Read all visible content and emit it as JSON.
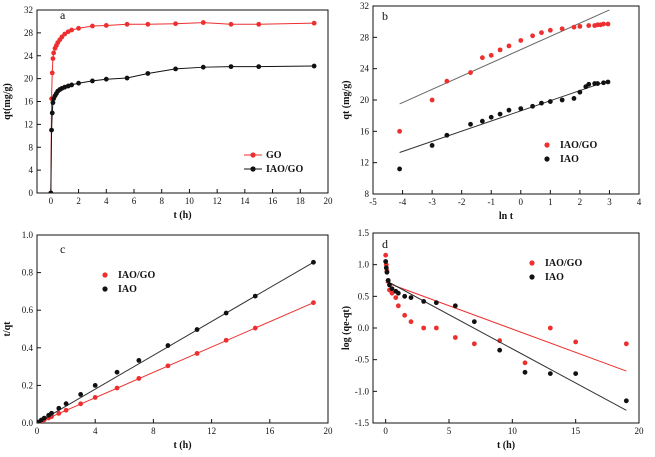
{
  "chart_data": [
    {
      "type": "scatter",
      "panel_label": "a",
      "xlabel": "t (h)",
      "ylabel": "qt(mg/g)",
      "xlim": [
        -1,
        20
      ],
      "ylim": [
        0,
        32
      ],
      "xticks": [
        0,
        2,
        4,
        6,
        8,
        10,
        12,
        14,
        16,
        18,
        20
      ],
      "yticks": [
        0,
        4,
        8,
        12,
        16,
        20,
        24,
        28,
        32
      ],
      "legend_position": "center-right",
      "series": [
        {
          "name": "GO",
          "color": "#ee2f2f",
          "marker": "circle",
          "connect": true,
          "x": [
            0,
            0.05,
            0.1,
            0.15,
            0.2,
            0.3,
            0.4,
            0.5,
            0.65,
            0.8,
            1.0,
            1.25,
            1.5,
            2.0,
            3.0,
            4.0,
            5.5,
            7.0,
            9.0,
            11.0,
            13.0,
            15.0,
            19.0
          ],
          "y": [
            0,
            16.5,
            21.0,
            23.5,
            24.5,
            25.3,
            25.8,
            26.3,
            26.8,
            27.3,
            27.8,
            28.2,
            28.5,
            28.8,
            29.2,
            29.3,
            29.5,
            29.5,
            29.6,
            29.8,
            29.5,
            29.5,
            29.7
          ]
        },
        {
          "name": "IAO/GO",
          "color": "#111111",
          "marker": "circle",
          "connect": true,
          "x": [
            0,
            0.05,
            0.1,
            0.15,
            0.2,
            0.3,
            0.4,
            0.5,
            0.65,
            0.8,
            1.0,
            1.25,
            1.5,
            2.0,
            3.0,
            4.0,
            5.5,
            7.0,
            9.0,
            11.0,
            13.0,
            15.0,
            19.0
          ],
          "y": [
            0,
            11.0,
            14.0,
            15.8,
            16.5,
            17.0,
            17.4,
            17.8,
            18.1,
            18.3,
            18.5,
            18.7,
            18.9,
            19.2,
            19.6,
            19.9,
            20.1,
            20.9,
            21.7,
            22.0,
            22.1,
            22.1,
            22.2
          ]
        }
      ]
    },
    {
      "type": "scatter",
      "panel_label": "b",
      "xlabel": "ln t",
      "ylabel": "qt (mg/g)",
      "xlim": [
        -5,
        4
      ],
      "ylim": [
        8,
        32
      ],
      "xticks": [
        -5,
        -4,
        -3,
        -2,
        -1,
        0,
        1,
        2,
        3,
        4
      ],
      "yticks": [
        8,
        12,
        16,
        20,
        24,
        28,
        32
      ],
      "legend_position": "bottom-right",
      "series": [
        {
          "name": "IAO/GO",
          "color": "#ee2f2f",
          "marker": "circle",
          "x": [
            -4.1,
            -3.0,
            -2.5,
            -1.7,
            -1.3,
            -1.0,
            -0.7,
            -0.4,
            0.0,
            0.4,
            0.7,
            1.0,
            1.4,
            1.8,
            2.0,
            2.3,
            2.5,
            2.6,
            2.7,
            2.8,
            2.95
          ],
          "y": [
            16.0,
            20.0,
            22.4,
            23.5,
            25.4,
            25.7,
            26.4,
            26.9,
            27.6,
            28.2,
            28.6,
            28.9,
            29.1,
            29.3,
            29.4,
            29.5,
            29.5,
            29.6,
            29.6,
            29.7,
            29.7
          ],
          "fit": {
            "x": [
              -4.1,
              3.0
            ],
            "y": [
              19.5,
              31.5
            ]
          }
        },
        {
          "name": "IAO",
          "color": "#111111",
          "marker": "circle",
          "x": [
            -4.1,
            -3.0,
            -2.5,
            -1.7,
            -1.3,
            -1.0,
            -0.7,
            -0.4,
            0.0,
            0.4,
            0.7,
            1.0,
            1.4,
            1.8,
            2.0,
            2.2,
            2.3,
            2.5,
            2.6,
            2.8,
            2.95
          ],
          "y": [
            11.2,
            14.2,
            15.5,
            16.9,
            17.3,
            17.8,
            18.2,
            18.7,
            18.9,
            19.2,
            19.6,
            19.8,
            20.0,
            20.2,
            21.0,
            21.7,
            22.0,
            22.1,
            22.1,
            22.2,
            22.3
          ],
          "fit": {
            "x": [
              -4.1,
              3.0
            ],
            "y": [
              13.3,
              22.5
            ]
          }
        }
      ]
    },
    {
      "type": "scatter",
      "panel_label": "c",
      "xlabel": "t (h)",
      "ylabel": "t/qt",
      "xlim": [
        0,
        20
      ],
      "ylim": [
        0.0,
        1.0
      ],
      "xticks": [
        0,
        4,
        8,
        12,
        16,
        20
      ],
      "yticks": [
        0.0,
        0.2,
        0.4,
        0.6,
        0.8,
        1.0
      ],
      "legend_position": "center",
      "series": [
        {
          "name": "IAO/GO",
          "color": "#ee2f2f",
          "marker": "circle",
          "x": [
            0.1,
            0.3,
            0.5,
            0.8,
            1.0,
            1.5,
            2.0,
            3.0,
            4.0,
            5.5,
            7.0,
            9.0,
            11.0,
            13.0,
            15.0,
            19.0
          ],
          "y": [
            0.003,
            0.01,
            0.017,
            0.027,
            0.034,
            0.051,
            0.068,
            0.102,
            0.136,
            0.186,
            0.237,
            0.304,
            0.37,
            0.44,
            0.505,
            0.64
          ],
          "fit": {
            "x": [
              0,
              19.0
            ],
            "y": [
              0,
              0.64
            ]
          }
        },
        {
          "name": "IAO",
          "color": "#111111",
          "marker": "circle",
          "x": [
            0.1,
            0.3,
            0.5,
            0.8,
            1.0,
            1.5,
            2.0,
            3.0,
            4.0,
            5.5,
            7.0,
            9.0,
            11.0,
            13.0,
            15.0,
            19.0
          ],
          "y": [
            0.005,
            0.016,
            0.026,
            0.041,
            0.052,
            0.078,
            0.103,
            0.152,
            0.2,
            0.27,
            0.333,
            0.412,
            0.497,
            0.585,
            0.675,
            0.855
          ],
          "fit": {
            "x": [
              0,
              19.0
            ],
            "y": [
              0,
              0.855
            ]
          }
        }
      ]
    },
    {
      "type": "scatter",
      "panel_label": "d",
      "xlabel": "t (h)",
      "ylabel": "log (qe-qt)",
      "xlim": [
        -1,
        20
      ],
      "ylim": [
        -1.5,
        1.5
      ],
      "xticks": [
        0,
        5,
        10,
        15,
        20
      ],
      "yticks": [
        -1.5,
        -1.0,
        -0.5,
        0.0,
        0.5,
        1.0,
        1.5
      ],
      "legend_position": "top-right",
      "series": [
        {
          "name": "IAO/GO",
          "color": "#ee2f2f",
          "marker": "circle",
          "x": [
            0,
            0.05,
            0.1,
            0.2,
            0.3,
            0.5,
            0.8,
            1.0,
            1.5,
            2.0,
            3.0,
            4.0,
            5.5,
            7.0,
            9.0,
            11.0,
            13.0,
            15.0,
            19.0
          ],
          "y": [
            1.15,
            1.0,
            0.9,
            0.75,
            0.6,
            0.55,
            0.48,
            0.35,
            0.2,
            0.1,
            0.0,
            0.0,
            -0.15,
            -0.25,
            -0.2,
            -0.55,
            0.0,
            -0.22,
            -0.25
          ],
          "fit": {
            "x": [
              0,
              19.0
            ],
            "y": [
              0.72,
              -0.68
            ]
          }
        },
        {
          "name": "IAO",
          "color": "#111111",
          "marker": "circle",
          "x": [
            0,
            0.05,
            0.1,
            0.2,
            0.3,
            0.5,
            0.8,
            1.0,
            1.5,
            2.0,
            3.0,
            4.0,
            5.5,
            7.0,
            9.0,
            11.0,
            13.0,
            15.0,
            19.0
          ],
          "y": [
            1.05,
            0.95,
            0.88,
            0.75,
            0.68,
            0.62,
            0.58,
            0.55,
            0.5,
            0.48,
            0.42,
            0.4,
            0.35,
            0.1,
            -0.35,
            -0.7,
            -0.72,
            -0.72,
            -1.15
          ],
          "fit": {
            "x": [
              0,
              19.0
            ],
            "y": [
              0.75,
              -1.3
            ]
          }
        }
      ]
    }
  ]
}
